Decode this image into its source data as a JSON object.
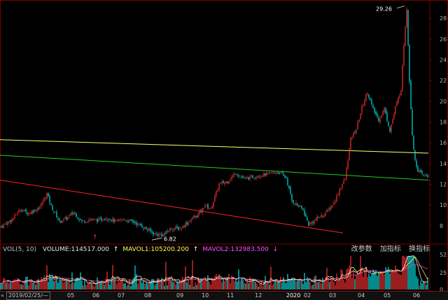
{
  "chart_data": {
    "type": "candlestick",
    "price_axis": {
      "ticks": [
        "28",
        "26",
        "24",
        "22",
        "20",
        "18",
        "16",
        "14",
        "12",
        "10",
        "8"
      ],
      "ylim": [
        6.5,
        29.5
      ]
    },
    "annotations": {
      "high_label": "29.26",
      "low_label": "6.82",
      "marker": "↑"
    },
    "trendlines": [
      {
        "color": "#ffff66",
        "from": [
          0,
          16.3
        ],
        "to": [
          306,
          15.0
        ]
      },
      {
        "color": "#22cc22",
        "from": [
          0,
          14.8
        ],
        "to": [
          306,
          12.4
        ]
      },
      {
        "color": "#ff2222",
        "from": [
          0,
          12.4
        ],
        "to": [
          245,
          7.3
        ]
      }
    ],
    "volume_axis": {
      "ticks": [
        "52",
        "25",
        "0"
      ]
    }
  },
  "volume_header": {
    "label": "VOL(5, 10)",
    "volume": "VOLUME:114517.000",
    "mavol1": "MAVOL1:105200.200",
    "mavol2": "MAVOL2:132983.500",
    "arrow_up": "↑",
    "arrow_down": "↓"
  },
  "tools": {
    "params": "改参数",
    "add": "加指标",
    "switch": "换指标"
  },
  "time_axis": {
    "nav": "«",
    "start_date": "2019/02/25/—",
    "months": [
      "05",
      "06",
      "07",
      "08",
      "09",
      "10",
      "11",
      "12",
      "2020",
      "02",
      "03",
      "04",
      "05",
      "06"
    ]
  },
  "colors": {
    "up": "#ff3232",
    "down": "#00e5e5",
    "ma_yellow": "#ffff66",
    "ma_green": "#22cc22",
    "trend_red": "#ff2222"
  }
}
